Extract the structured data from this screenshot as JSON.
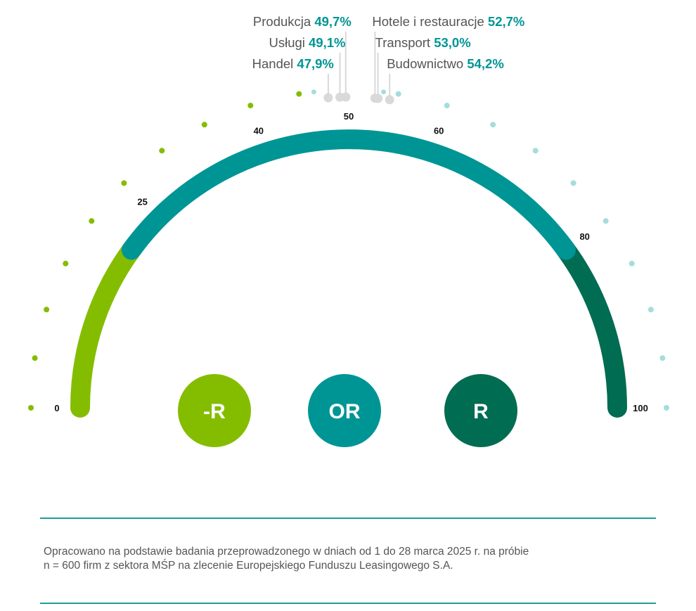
{
  "chart_data": {
    "type": "gauge",
    "range": [
      0,
      100
    ],
    "ticks": [
      0,
      25,
      40,
      50,
      60,
      80,
      100
    ],
    "zones": [
      {
        "from": 0,
        "to": 20,
        "color": "#84bd00"
      },
      {
        "from": 20,
        "to": 80,
        "color": "#009595"
      },
      {
        "from": 80,
        "to": 100,
        "color": "#006c51"
      }
    ],
    "indicators": [
      {
        "name": "Handel",
        "label": "Handel",
        "value_label": "47,9%",
        "value": 47.9,
        "side": "left"
      },
      {
        "name": "Usługi",
        "label": "Usługi",
        "value_label": "49,1%",
        "value": 49.1,
        "side": "left"
      },
      {
        "name": "Produkcja",
        "label": "Produkcja",
        "value_label": "49,7%",
        "value": 49.7,
        "side": "left"
      },
      {
        "name": "Hotele i restauracje",
        "label": "Hotele i restauracje",
        "value_label": "52,7%",
        "value": 52.7,
        "side": "right"
      },
      {
        "name": "Transport",
        "label": "Transport",
        "value_label": "53,0%",
        "value": 53.0,
        "side": "right"
      },
      {
        "name": "Budownictwo",
        "label": "Budownictwo",
        "value_label": "54,2%",
        "value": 54.2,
        "side": "right"
      }
    ],
    "badges": [
      {
        "text": "-R",
        "color": "#84bd00"
      },
      {
        "text": "OR",
        "color": "#009595"
      },
      {
        "text": "R",
        "color": "#006c51"
      }
    ],
    "colors": {
      "green_dot": "#84bd00",
      "teal_dot": "#a6dcdc",
      "marker": "#d9d9d9",
      "value_text": "#009595",
      "label_text": "#555555",
      "tick_text": "#111111"
    }
  },
  "footer": {
    "note_line1": "Opracowano na podstawie badania przeprowadzonego w dniach od 1 do 28 marca 2025 r. na próbie",
    "note_line2": "n = 600 firm z sektora MŚP na zlecenie Europejskiego Funduszu Leasingowego S.A."
  },
  "colors": {
    "rule": "#1f9d9b"
  }
}
